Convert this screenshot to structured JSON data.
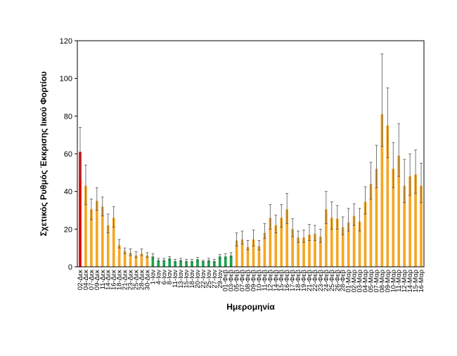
{
  "chart_data": {
    "type": "bar",
    "title": "",
    "xlabel": "Ημερομηνία",
    "ylabel": "Σχετικός Ρυθμός Έκκρισης Ιικού Φορτίου",
    "ylim": [
      0,
      120
    ],
    "yticks": [
      0,
      20,
      40,
      60,
      80,
      100,
      120
    ],
    "grid": false,
    "legend": "none",
    "colors": {
      "red": "#e00000",
      "orange": "#f5a623",
      "green": "#1aa34a",
      "errorbar": "#555555",
      "frame": "#000000"
    },
    "categories": [
      "02-Δεκ",
      "04-Δεκ",
      "07-Δεκ",
      "09-Δεκ",
      "11-Δεκ",
      "14-Δεκ",
      "16-Δεκ",
      "18-Δεκ",
      "21-Δεκ",
      "23-Δεκ",
      "25-Δεκ",
      "28-Δεκ",
      "30-Δεκ",
      "1-Ιαν",
      "4-Ιαν",
      "6-Ιαν",
      "8-Ιαν",
      "11-Ιαν",
      "13-Ιαν",
      "15-Ιαν",
      "18-Ιαν",
      "20-Ιαν",
      "22-Ιαν",
      "25-Ιαν",
      "27-Ιαν",
      "29-Ιαν",
      "01-Φεβ",
      "03-Φεβ",
      "05-Φεβ",
      "07-Φεβ",
      "08-Φεβ",
      "09-Φεβ",
      "10-Φεβ",
      "11-Φεβ",
      "12-Φεβ",
      "14-Φεβ",
      "15-Φεβ",
      "16-Φεβ",
      "17-Φεβ",
      "18-Φεβ",
      "19-Φεβ",
      "21-Φεβ",
      "22-Φεβ",
      "23-Φεβ",
      "24-Φεβ",
      "25-Φεβ",
      "26-Φεβ",
      "28-Φεβ",
      "01-Μαρ",
      "02-Μαρ",
      "03-Μαρ",
      "04-Μαρ",
      "05-Μαρ",
      "07-Μαρ",
      "08-Μαρ",
      "09-Μαρ",
      "10-Μαρ",
      "11-Μαρ",
      "12-Μαρ",
      "14-Μαρ",
      "15-Μαρ",
      "16-Μαρ"
    ],
    "values": [
      61,
      43,
      30.5,
      35,
      32,
      22,
      26,
      11.5,
      8.5,
      7.5,
      6,
      7,
      6,
      5.5,
      3.5,
      3.5,
      4.5,
      3,
      3.5,
      3,
      3,
      4,
      3,
      3.5,
      3,
      5.5,
      5.5,
      6,
      14,
      14.5,
      10.5,
      14.5,
      11,
      18,
      26,
      22,
      26,
      30.5,
      20,
      15.5,
      15.5,
      17,
      17.5,
      16,
      30.5,
      26,
      25.5,
      21,
      23.5,
      27,
      24,
      34.5,
      44,
      52,
      81,
      75,
      52,
      59,
      43,
      48,
      49,
      43
    ],
    "err_low": [
      47,
      33,
      25,
      30,
      27,
      18,
      21,
      10,
      7,
      6,
      5,
      6,
      5,
      4.5,
      3,
      3,
      3.5,
      2.5,
      3,
      2.5,
      2.5,
      3,
      2.5,
      2.5,
      2.5,
      4.5,
      4.5,
      5,
      11,
      12,
      9,
      11,
      9,
      15,
      20,
      18,
      21,
      23,
      16,
      13,
      13,
      14,
      14,
      13,
      23,
      20,
      20,
      17,
      19,
      22,
      19,
      28,
      36,
      42,
      64,
      58,
      42,
      48,
      34,
      38,
      39,
      34
    ],
    "err_high": [
      74,
      54,
      36,
      42,
      37,
      28,
      32,
      14.5,
      10,
      9.5,
      8,
      9.5,
      7.5,
      7,
      4.5,
      4.5,
      5.5,
      4,
      4.5,
      4,
      4,
      5,
      3.5,
      4.5,
      4,
      6.5,
      7,
      7.5,
      18,
      19,
      14,
      19.5,
      14,
      23,
      33,
      27.5,
      33,
      39,
      25.5,
      19,
      19.5,
      22.5,
      22,
      20,
      40,
      34.5,
      32.5,
      26.5,
      31,
      33.5,
      31,
      42.5,
      55.5,
      64.5,
      113,
      95,
      66,
      76,
      57,
      60,
      62,
      55
    ],
    "bar_colors": [
      "red",
      "orange",
      "orange",
      "orange",
      "orange",
      "orange",
      "orange",
      "orange",
      "orange",
      "orange",
      "orange",
      "orange",
      "orange",
      "green",
      "green",
      "green",
      "green",
      "green",
      "green",
      "green",
      "green",
      "green",
      "green",
      "green",
      "green",
      "green",
      "green",
      "green",
      "orange",
      "orange",
      "orange",
      "orange",
      "orange",
      "orange",
      "orange",
      "orange",
      "orange",
      "orange",
      "orange",
      "orange",
      "orange",
      "orange",
      "orange",
      "orange",
      "orange",
      "orange",
      "orange",
      "orange",
      "orange",
      "orange",
      "orange",
      "orange",
      "orange",
      "orange",
      "orange",
      "orange",
      "orange",
      "orange",
      "orange",
      "orange",
      "orange",
      "orange"
    ]
  }
}
